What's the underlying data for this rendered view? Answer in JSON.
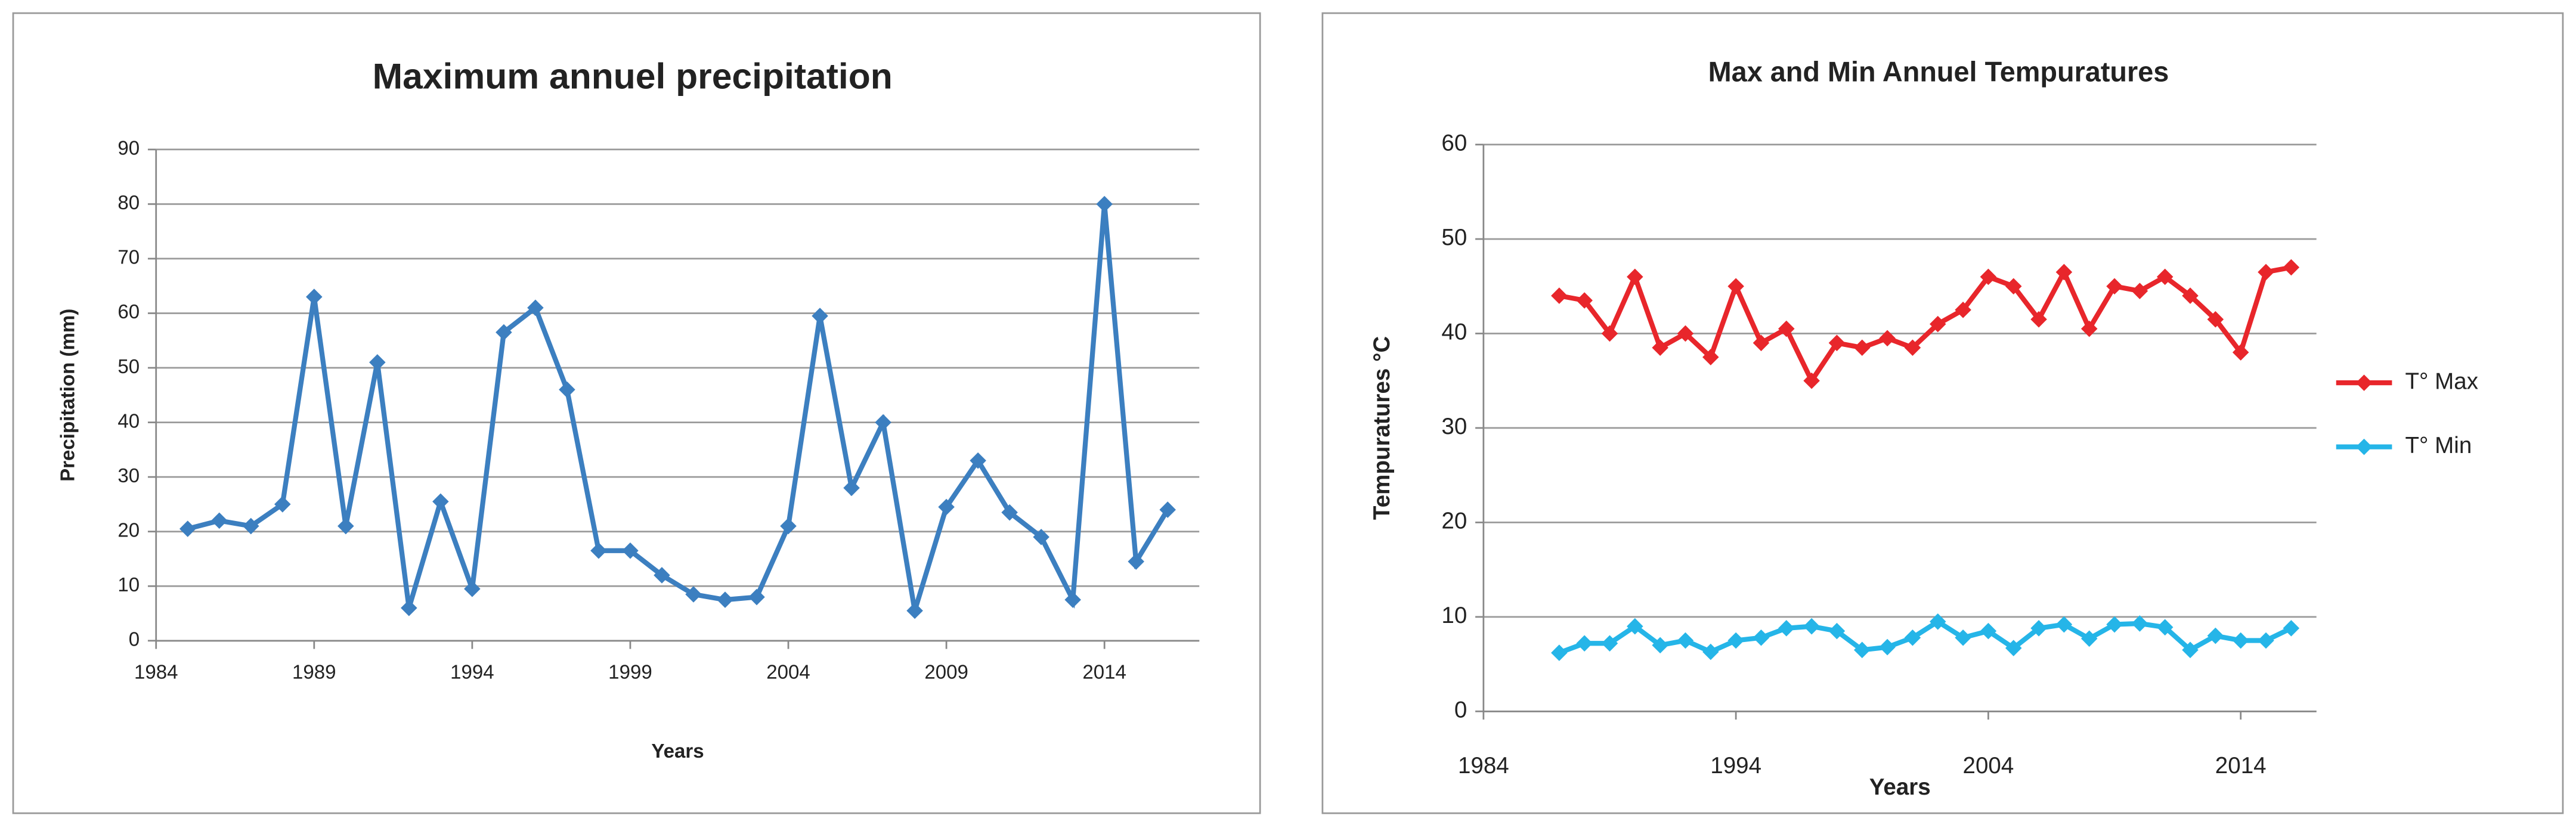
{
  "chart_data": [
    {
      "type": "line",
      "title": "Maximum annuel precipitation",
      "x_label": "Years",
      "y_label": "Precipitation (mm)",
      "x": [
        1985,
        1986,
        1987,
        1988,
        1989,
        1990,
        1991,
        1992,
        1993,
        1994,
        1995,
        1996,
        1997,
        1998,
        1999,
        2000,
        2001,
        2002,
        2003,
        2004,
        2005,
        2006,
        2007,
        2008,
        2009,
        2010,
        2011,
        2012,
        2013,
        2014,
        2015,
        2016
      ],
      "values": [
        20.5,
        22,
        21,
        25,
        63,
        21,
        51,
        6,
        25.5,
        9.5,
        56.5,
        61,
        46,
        16.5,
        16.5,
        12,
        8.5,
        7.5,
        8,
        21,
        59.5,
        28,
        40,
        5.5,
        24.5,
        33,
        23.5,
        19,
        7.5,
        80,
        14.5,
        24
      ],
      "color": "#3c7fc0",
      "xlim": [
        1984,
        2017
      ],
      "xticks": [
        1984,
        1989,
        1994,
        1999,
        2004,
        2009,
        2014
      ],
      "ylim": [
        0,
        90
      ],
      "yticks": [
        0,
        10,
        20,
        30,
        40,
        50,
        60,
        70,
        80,
        90
      ],
      "grid": true
    },
    {
      "type": "line",
      "title": "Max and Min Annuel Tempuratures",
      "x_label": "Years",
      "y_label": "Tempuratures °C",
      "x": [
        1987,
        1988,
        1989,
        1990,
        1991,
        1992,
        1993,
        1994,
        1995,
        1996,
        1997,
        1998,
        1999,
        2000,
        2001,
        2002,
        2003,
        2004,
        2005,
        2006,
        2007,
        2008,
        2009,
        2010,
        2011,
        2012,
        2013,
        2014,
        2015,
        2016
      ],
      "series": [
        {
          "name": "T° Max",
          "color": "#e8262b",
          "values": [
            44,
            43.5,
            40,
            46,
            38.5,
            40,
            37.5,
            45,
            39,
            40.5,
            35,
            39,
            38.5,
            39.5,
            38.5,
            41,
            42.5,
            46,
            45,
            41.5,
            46.5,
            40.5,
            45,
            44.5,
            46,
            44,
            41.5,
            38,
            46.5,
            47
          ]
        },
        {
          "name": "T° Min",
          "color": "#25b5e8",
          "values": [
            6.2,
            7.2,
            7.2,
            9,
            7,
            7.5,
            6.3,
            7.5,
            7.8,
            8.8,
            9,
            8.5,
            6.5,
            6.8,
            7.8,
            9.5,
            7.8,
            8.5,
            6.7,
            8.8,
            9.2,
            7.7,
            9.2,
            9.3,
            8.9,
            6.5,
            8,
            7.5,
            7.5,
            8.8
          ]
        }
      ],
      "xlim": [
        1984,
        2017
      ],
      "xticks": [
        1984,
        1994,
        2004,
        2014
      ],
      "ylim": [
        0,
        60
      ],
      "yticks": [
        0,
        10,
        20,
        30,
        40,
        50,
        60
      ],
      "grid": true,
      "legend": "right"
    }
  ]
}
